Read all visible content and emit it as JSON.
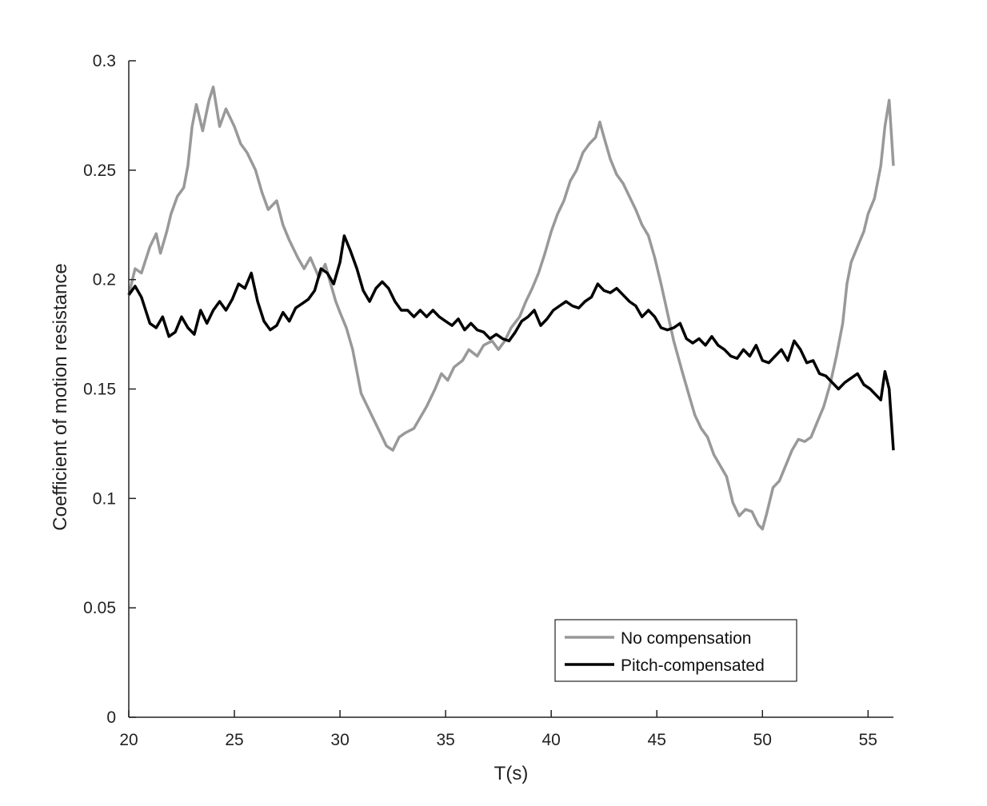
{
  "chart_data": {
    "type": "line",
    "xlabel": "T(s)",
    "ylabel": "Coefficient of motion resistance",
    "xlim": [
      20,
      56.2
    ],
    "ylim": [
      0,
      0.3
    ],
    "x_ticks": [
      20,
      25,
      30,
      35,
      40,
      45,
      50,
      55
    ],
    "y_ticks": [
      0,
      0.05,
      0.1,
      0.15,
      0.2,
      0.25,
      0.3
    ],
    "x_tick_labels": [
      "20",
      "25",
      "30",
      "35",
      "40",
      "45",
      "50",
      "55"
    ],
    "y_tick_labels": [
      "0",
      "0.05",
      "0.1",
      "0.15",
      "0.2",
      "0.25",
      "0.3"
    ],
    "grid": false,
    "legend_position": "bottom-right",
    "series": [
      {
        "name": "No compensation",
        "color": "#999999",
        "points": [
          [
            20.0,
            0.193
          ],
          [
            20.3,
            0.205
          ],
          [
            20.6,
            0.203
          ],
          [
            21.0,
            0.215
          ],
          [
            21.3,
            0.221
          ],
          [
            21.5,
            0.212
          ],
          [
            21.8,
            0.222
          ],
          [
            22.0,
            0.23
          ],
          [
            22.3,
            0.238
          ],
          [
            22.6,
            0.242
          ],
          [
            22.8,
            0.252
          ],
          [
            23.0,
            0.27
          ],
          [
            23.2,
            0.28
          ],
          [
            23.5,
            0.268
          ],
          [
            23.8,
            0.282
          ],
          [
            24.0,
            0.288
          ],
          [
            24.3,
            0.27
          ],
          [
            24.6,
            0.278
          ],
          [
            25.0,
            0.27
          ],
          [
            25.3,
            0.262
          ],
          [
            25.6,
            0.258
          ],
          [
            26.0,
            0.25
          ],
          [
            26.3,
            0.24
          ],
          [
            26.6,
            0.232
          ],
          [
            27.0,
            0.236
          ],
          [
            27.3,
            0.225
          ],
          [
            27.6,
            0.218
          ],
          [
            28.0,
            0.21
          ],
          [
            28.3,
            0.205
          ],
          [
            28.6,
            0.21
          ],
          [
            29.0,
            0.201
          ],
          [
            29.3,
            0.207
          ],
          [
            29.5,
            0.2
          ],
          [
            29.8,
            0.19
          ],
          [
            30.0,
            0.185
          ],
          [
            30.3,
            0.178
          ],
          [
            30.6,
            0.168
          ],
          [
            30.8,
            0.158
          ],
          [
            31.0,
            0.148
          ],
          [
            31.3,
            0.142
          ],
          [
            31.6,
            0.136
          ],
          [
            31.9,
            0.13
          ],
          [
            32.2,
            0.124
          ],
          [
            32.5,
            0.122
          ],
          [
            32.8,
            0.128
          ],
          [
            33.1,
            0.13
          ],
          [
            33.5,
            0.132
          ],
          [
            33.8,
            0.137
          ],
          [
            34.1,
            0.142
          ],
          [
            34.5,
            0.15
          ],
          [
            34.8,
            0.157
          ],
          [
            35.1,
            0.154
          ],
          [
            35.4,
            0.16
          ],
          [
            35.8,
            0.163
          ],
          [
            36.1,
            0.168
          ],
          [
            36.5,
            0.165
          ],
          [
            36.8,
            0.17
          ],
          [
            37.2,
            0.172
          ],
          [
            37.5,
            0.168
          ],
          [
            37.8,
            0.172
          ],
          [
            38.1,
            0.178
          ],
          [
            38.5,
            0.183
          ],
          [
            38.8,
            0.19
          ],
          [
            39.1,
            0.196
          ],
          [
            39.4,
            0.203
          ],
          [
            39.7,
            0.212
          ],
          [
            40.0,
            0.222
          ],
          [
            40.3,
            0.23
          ],
          [
            40.6,
            0.236
          ],
          [
            40.9,
            0.245
          ],
          [
            41.2,
            0.25
          ],
          [
            41.5,
            0.258
          ],
          [
            41.8,
            0.262
          ],
          [
            42.1,
            0.265
          ],
          [
            42.3,
            0.272
          ],
          [
            42.5,
            0.265
          ],
          [
            42.8,
            0.255
          ],
          [
            43.1,
            0.248
          ],
          [
            43.4,
            0.244
          ],
          [
            43.7,
            0.238
          ],
          [
            44.0,
            0.232
          ],
          [
            44.3,
            0.225
          ],
          [
            44.6,
            0.22
          ],
          [
            44.9,
            0.21
          ],
          [
            45.2,
            0.198
          ],
          [
            45.5,
            0.185
          ],
          [
            45.8,
            0.172
          ],
          [
            46.0,
            0.165
          ],
          [
            46.2,
            0.158
          ],
          [
            46.5,
            0.148
          ],
          [
            46.8,
            0.138
          ],
          [
            47.1,
            0.132
          ],
          [
            47.4,
            0.128
          ],
          [
            47.7,
            0.12
          ],
          [
            48.0,
            0.115
          ],
          [
            48.3,
            0.11
          ],
          [
            48.6,
            0.098
          ],
          [
            48.9,
            0.092
          ],
          [
            49.2,
            0.095
          ],
          [
            49.5,
            0.094
          ],
          [
            49.8,
            0.088
          ],
          [
            50.0,
            0.086
          ],
          [
            50.2,
            0.093
          ],
          [
            50.5,
            0.105
          ],
          [
            50.8,
            0.108
          ],
          [
            51.1,
            0.115
          ],
          [
            51.4,
            0.122
          ],
          [
            51.7,
            0.127
          ],
          [
            52.0,
            0.126
          ],
          [
            52.3,
            0.128
          ],
          [
            52.6,
            0.135
          ],
          [
            52.9,
            0.142
          ],
          [
            53.2,
            0.152
          ],
          [
            53.5,
            0.165
          ],
          [
            53.8,
            0.18
          ],
          [
            54.0,
            0.198
          ],
          [
            54.2,
            0.208
          ],
          [
            54.5,
            0.215
          ],
          [
            54.8,
            0.222
          ],
          [
            55.0,
            0.23
          ],
          [
            55.3,
            0.237
          ],
          [
            55.6,
            0.252
          ],
          [
            55.8,
            0.27
          ],
          [
            56.0,
            0.282
          ],
          [
            56.2,
            0.252
          ]
        ]
      },
      {
        "name": "Pitch-compensated",
        "color": "#000000",
        "points": [
          [
            20.0,
            0.193
          ],
          [
            20.3,
            0.197
          ],
          [
            20.6,
            0.192
          ],
          [
            21.0,
            0.18
          ],
          [
            21.3,
            0.178
          ],
          [
            21.6,
            0.183
          ],
          [
            21.9,
            0.174
          ],
          [
            22.2,
            0.176
          ],
          [
            22.5,
            0.183
          ],
          [
            22.8,
            0.178
          ],
          [
            23.1,
            0.175
          ],
          [
            23.4,
            0.186
          ],
          [
            23.7,
            0.18
          ],
          [
            24.0,
            0.186
          ],
          [
            24.3,
            0.19
          ],
          [
            24.6,
            0.186
          ],
          [
            24.9,
            0.191
          ],
          [
            25.2,
            0.198
          ],
          [
            25.5,
            0.196
          ],
          [
            25.8,
            0.203
          ],
          [
            26.1,
            0.19
          ],
          [
            26.4,
            0.181
          ],
          [
            26.7,
            0.177
          ],
          [
            27.0,
            0.179
          ],
          [
            27.3,
            0.185
          ],
          [
            27.6,
            0.181
          ],
          [
            27.9,
            0.187
          ],
          [
            28.2,
            0.189
          ],
          [
            28.5,
            0.191
          ],
          [
            28.8,
            0.195
          ],
          [
            29.1,
            0.205
          ],
          [
            29.4,
            0.203
          ],
          [
            29.7,
            0.198
          ],
          [
            30.0,
            0.208
          ],
          [
            30.2,
            0.22
          ],
          [
            30.5,
            0.213
          ],
          [
            30.8,
            0.205
          ],
          [
            31.1,
            0.195
          ],
          [
            31.4,
            0.19
          ],
          [
            31.7,
            0.196
          ],
          [
            32.0,
            0.199
          ],
          [
            32.3,
            0.196
          ],
          [
            32.6,
            0.19
          ],
          [
            32.9,
            0.186
          ],
          [
            33.2,
            0.186
          ],
          [
            33.5,
            0.183
          ],
          [
            33.8,
            0.186
          ],
          [
            34.1,
            0.183
          ],
          [
            34.4,
            0.186
          ],
          [
            34.7,
            0.183
          ],
          [
            35.0,
            0.181
          ],
          [
            35.3,
            0.179
          ],
          [
            35.6,
            0.182
          ],
          [
            35.9,
            0.177
          ],
          [
            36.2,
            0.18
          ],
          [
            36.5,
            0.177
          ],
          [
            36.8,
            0.176
          ],
          [
            37.1,
            0.173
          ],
          [
            37.4,
            0.175
          ],
          [
            37.7,
            0.173
          ],
          [
            38.0,
            0.172
          ],
          [
            38.3,
            0.176
          ],
          [
            38.6,
            0.181
          ],
          [
            38.9,
            0.183
          ],
          [
            39.2,
            0.186
          ],
          [
            39.5,
            0.179
          ],
          [
            39.8,
            0.182
          ],
          [
            40.1,
            0.186
          ],
          [
            40.4,
            0.188
          ],
          [
            40.7,
            0.19
          ],
          [
            41.0,
            0.188
          ],
          [
            41.3,
            0.187
          ],
          [
            41.6,
            0.19
          ],
          [
            41.9,
            0.192
          ],
          [
            42.2,
            0.198
          ],
          [
            42.5,
            0.195
          ],
          [
            42.8,
            0.194
          ],
          [
            43.1,
            0.196
          ],
          [
            43.4,
            0.193
          ],
          [
            43.7,
            0.19
          ],
          [
            44.0,
            0.188
          ],
          [
            44.3,
            0.183
          ],
          [
            44.6,
            0.186
          ],
          [
            44.9,
            0.183
          ],
          [
            45.2,
            0.178
          ],
          [
            45.5,
            0.177
          ],
          [
            45.8,
            0.178
          ],
          [
            46.1,
            0.18
          ],
          [
            46.4,
            0.173
          ],
          [
            46.7,
            0.171
          ],
          [
            47.0,
            0.173
          ],
          [
            47.3,
            0.17
          ],
          [
            47.6,
            0.174
          ],
          [
            47.9,
            0.17
          ],
          [
            48.2,
            0.168
          ],
          [
            48.5,
            0.165
          ],
          [
            48.8,
            0.164
          ],
          [
            49.1,
            0.168
          ],
          [
            49.4,
            0.165
          ],
          [
            49.7,
            0.17
          ],
          [
            50.0,
            0.163
          ],
          [
            50.3,
            0.162
          ],
          [
            50.6,
            0.165
          ],
          [
            50.9,
            0.168
          ],
          [
            51.2,
            0.163
          ],
          [
            51.5,
            0.172
          ],
          [
            51.8,
            0.168
          ],
          [
            52.1,
            0.162
          ],
          [
            52.4,
            0.163
          ],
          [
            52.7,
            0.157
          ],
          [
            53.0,
            0.156
          ],
          [
            53.3,
            0.153
          ],
          [
            53.6,
            0.15
          ],
          [
            53.9,
            0.153
          ],
          [
            54.2,
            0.155
          ],
          [
            54.5,
            0.157
          ],
          [
            54.8,
            0.152
          ],
          [
            55.1,
            0.15
          ],
          [
            55.4,
            0.147
          ],
          [
            55.6,
            0.145
          ],
          [
            55.8,
            0.158
          ],
          [
            56.0,
            0.15
          ],
          [
            56.2,
            0.122
          ]
        ]
      }
    ]
  }
}
